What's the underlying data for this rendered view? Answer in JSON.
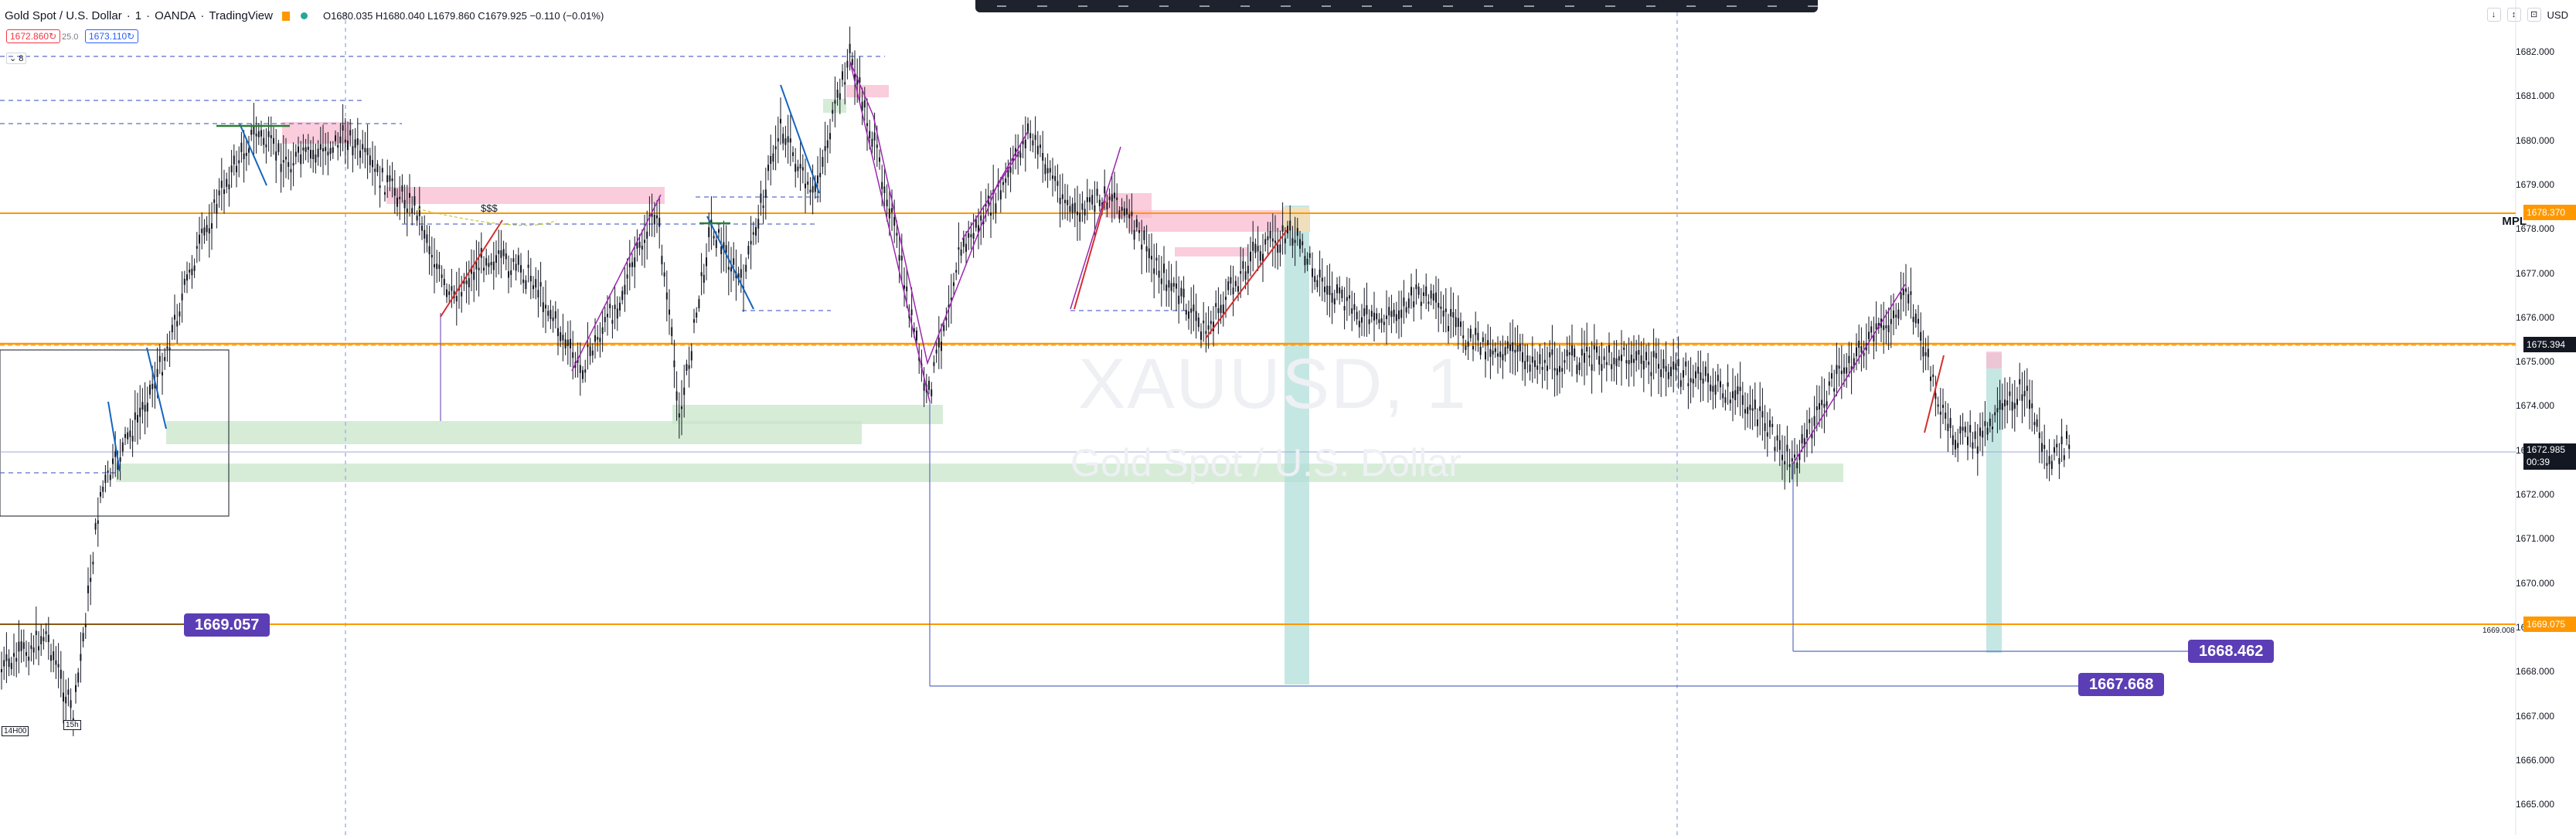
{
  "symbol": {
    "name": "Gold Spot / U.S. Dollar",
    "interval": "1",
    "broker": "OANDA",
    "platform": "TradingView",
    "separator": "·",
    "status_color": "#26a69a",
    "flag_color": "#ff9800"
  },
  "ohlc": "O1680.035 H1680.040 L1679.860 C1679.925 −0.110 (−0.01%)",
  "bid_ask": {
    "bid": "1672.860",
    "spread": "25.0",
    "ask": "1673.110",
    "bid_color": "#f23645",
    "ask_color": "#2962ff"
  },
  "collapse_label": "⌄ 8",
  "watermark": {
    "ticker": "XAUUSD, 1",
    "description": "Gold Spot / U.S. Dollar"
  },
  "toolbar_top_right": {
    "buttons": [
      "↓",
      "↕",
      "⊡"
    ],
    "currency": "USD"
  },
  "price_axis": {
    "ticks": [
      "1682.000",
      "1681.000",
      "1680.000",
      "1679.000",
      "1678.000",
      "1677.000",
      "1676.000",
      "1675.000",
      "1674.000",
      "1673.000",
      "1672.000",
      "1671.000",
      "1670.000",
      "1669.000",
      "1668.000",
      "1667.000",
      "1666.000",
      "1665.000"
    ],
    "badges": [
      {
        "label": "1678.370",
        "color": "#ff9800"
      },
      {
        "label": "1675.394",
        "color": "#131722"
      },
      {
        "label": "1672.985",
        "color": "#131722",
        "sub": "00:39"
      },
      {
        "label": "1669.075",
        "color": "#ff9800"
      }
    ],
    "mpl_label": "MPL",
    "small_level": "1669.008"
  },
  "annotations": {
    "sss": "$$$",
    "callouts": [
      "1669.057",
      "1667.668",
      "1668.462"
    ],
    "time_badges": [
      "14H00",
      "15h"
    ]
  },
  "colors": {
    "candle": "#131722",
    "level_orange": "#ff9800",
    "demand_zone": "#c8e6c9",
    "supply_zone": "#f8bbd0",
    "teal_zone": "#b2dfdb",
    "callout": "#5b3eb5",
    "dashed": "#5b6ecc",
    "fib": "#9c27b0"
  }
}
